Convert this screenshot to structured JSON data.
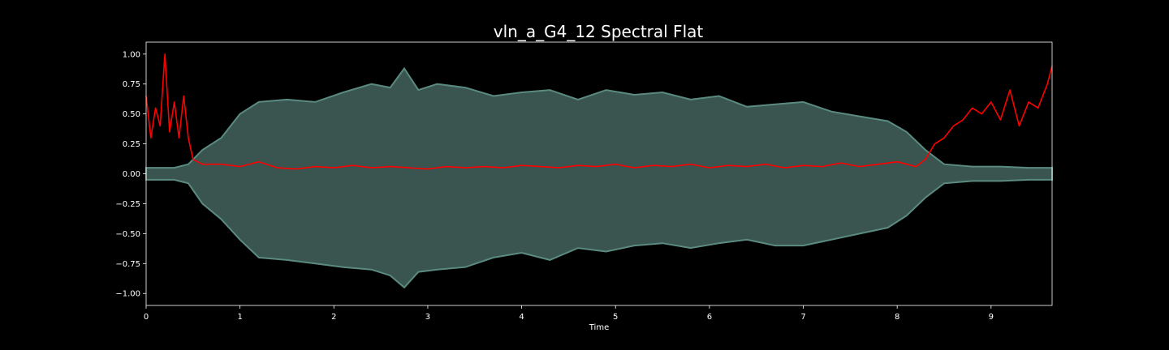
{
  "chart_data": {
    "type": "line",
    "title": "vln_a_G4_12 Spectral Flat",
    "xlabel": "Time",
    "ylabel": "",
    "xlim": [
      0,
      9.65
    ],
    "ylim": [
      -1.1,
      1.1
    ],
    "xticks": [
      0,
      1,
      2,
      3,
      4,
      5,
      6,
      7,
      8,
      9
    ],
    "xtick_labels": [
      "0",
      "1",
      "2",
      "3",
      "4",
      "5",
      "6",
      "7",
      "8",
      "9"
    ],
    "yticks": [
      1.0,
      0.75,
      0.5,
      0.25,
      0.0,
      -0.25,
      -0.5,
      -0.75,
      -1.0
    ],
    "ytick_labels": [
      "1.00",
      "0.75",
      "0.50",
      "0.25",
      "0.00",
      "−0.25",
      "−0.50",
      "−0.75",
      "−1.00"
    ],
    "grid": false,
    "legend": false,
    "background_color": "#000000",
    "axes_color": "#ffffff",
    "series": [
      {
        "kind": "waveform-envelope",
        "color": "#5a8a80",
        "fill_color": "#3a5550",
        "x": [
          0,
          0.3,
          0.45,
          0.6,
          0.8,
          1.0,
          1.2,
          1.5,
          1.8,
          2.1,
          2.4,
          2.6,
          2.75,
          2.9,
          3.1,
          3.4,
          3.7,
          4.0,
          4.3,
          4.6,
          4.9,
          5.2,
          5.5,
          5.8,
          6.1,
          6.4,
          6.7,
          7.0,
          7.3,
          7.6,
          7.9,
          8.1,
          8.3,
          8.5,
          8.8,
          9.1,
          9.4,
          9.65
        ],
        "upper": [
          0.05,
          0.05,
          0.08,
          0.2,
          0.3,
          0.5,
          0.6,
          0.62,
          0.6,
          0.68,
          0.75,
          0.72,
          0.88,
          0.7,
          0.75,
          0.72,
          0.65,
          0.68,
          0.7,
          0.62,
          0.7,
          0.66,
          0.68,
          0.62,
          0.65,
          0.56,
          0.58,
          0.6,
          0.52,
          0.48,
          0.44,
          0.35,
          0.2,
          0.08,
          0.06,
          0.06,
          0.05,
          0.05
        ],
        "lower": [
          -0.05,
          -0.05,
          -0.08,
          -0.25,
          -0.38,
          -0.55,
          -0.7,
          -0.72,
          -0.75,
          -0.78,
          -0.8,
          -0.85,
          -0.95,
          -0.82,
          -0.8,
          -0.78,
          -0.7,
          -0.66,
          -0.72,
          -0.62,
          -0.65,
          -0.6,
          -0.58,
          -0.62,
          -0.58,
          -0.55,
          -0.6,
          -0.6,
          -0.55,
          -0.5,
          -0.45,
          -0.35,
          -0.2,
          -0.08,
          -0.06,
          -0.06,
          -0.05,
          -0.05
        ]
      },
      {
        "kind": "spectral-flatness",
        "color": "#ff0000",
        "x": [
          0,
          0.05,
          0.1,
          0.15,
          0.2,
          0.25,
          0.3,
          0.35,
          0.4,
          0.45,
          0.5,
          0.6,
          0.8,
          1.0,
          1.2,
          1.4,
          1.6,
          1.8,
          2.0,
          2.2,
          2.4,
          2.6,
          2.8,
          3.0,
          3.2,
          3.4,
          3.6,
          3.8,
          4.0,
          4.2,
          4.4,
          4.6,
          4.8,
          5.0,
          5.2,
          5.4,
          5.6,
          5.8,
          6.0,
          6.2,
          6.4,
          6.6,
          6.8,
          7.0,
          7.2,
          7.4,
          7.6,
          7.8,
          8.0,
          8.2,
          8.3,
          8.4,
          8.5,
          8.6,
          8.7,
          8.8,
          8.9,
          9.0,
          9.1,
          9.2,
          9.3,
          9.4,
          9.5,
          9.6,
          9.65
        ],
        "y": [
          0.65,
          0.3,
          0.55,
          0.4,
          1.0,
          0.35,
          0.6,
          0.3,
          0.65,
          0.3,
          0.12,
          0.08,
          0.08,
          0.06,
          0.1,
          0.05,
          0.04,
          0.06,
          0.05,
          0.07,
          0.05,
          0.06,
          0.05,
          0.04,
          0.06,
          0.05,
          0.06,
          0.05,
          0.07,
          0.06,
          0.05,
          0.07,
          0.06,
          0.08,
          0.05,
          0.07,
          0.06,
          0.08,
          0.05,
          0.07,
          0.06,
          0.08,
          0.05,
          0.07,
          0.06,
          0.09,
          0.06,
          0.08,
          0.1,
          0.06,
          0.12,
          0.25,
          0.3,
          0.4,
          0.45,
          0.55,
          0.5,
          0.6,
          0.45,
          0.7,
          0.4,
          0.6,
          0.55,
          0.75,
          0.9
        ]
      }
    ]
  }
}
